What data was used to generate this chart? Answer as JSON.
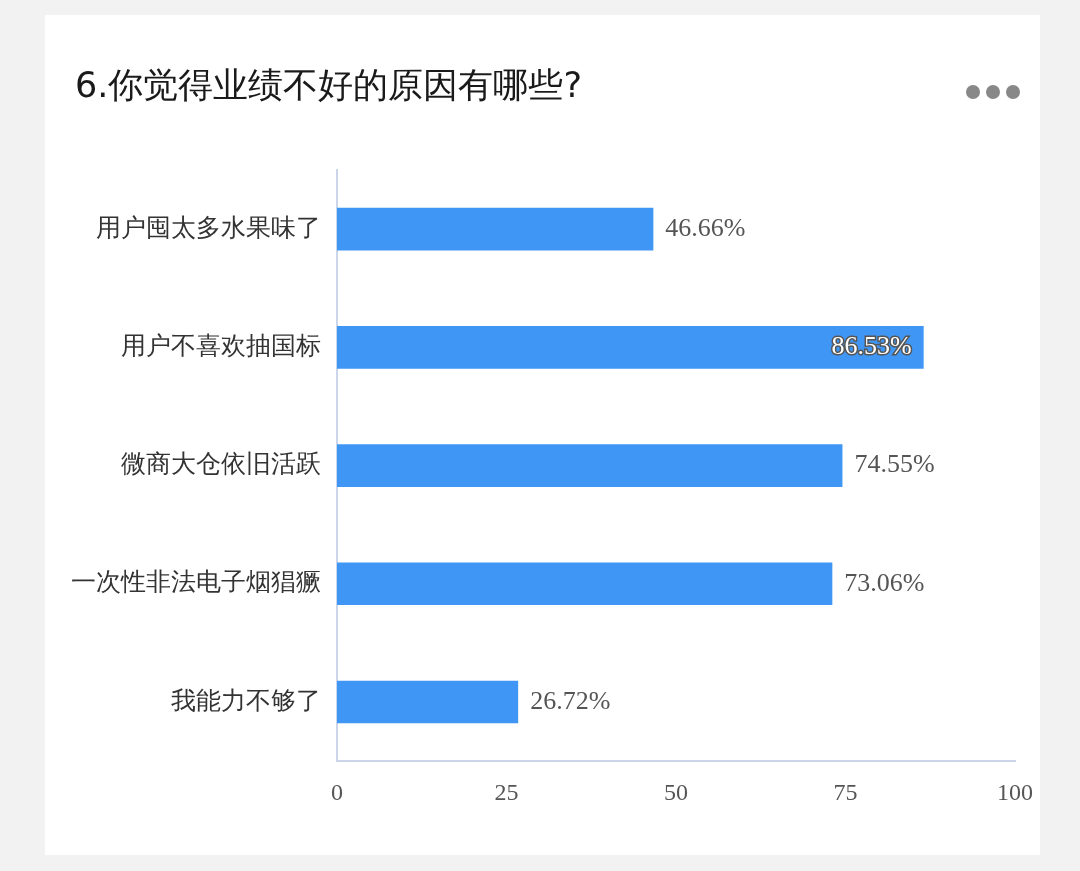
{
  "chart_data": {
    "type": "bar",
    "orientation": "horizontal",
    "title": "6.你觉得业绩不好的原因有哪些?",
    "categories": [
      "用户囤太多水果味了",
      "用户不喜欢抽国标",
      "微商大仓依旧活跃",
      "一次性非法电子烟猖獗",
      "我能力不够了"
    ],
    "values": [
      46.66,
      86.53,
      74.55,
      73.06,
      26.72
    ],
    "value_labels": [
      "46.66%",
      "86.53%",
      "74.55%",
      "73.06%",
      "26.72%"
    ],
    "color": "#4096f4",
    "xlim": [
      0,
      100
    ],
    "xticks": [
      0,
      25,
      50,
      75,
      100
    ],
    "grid": false,
    "legend": false
  }
}
